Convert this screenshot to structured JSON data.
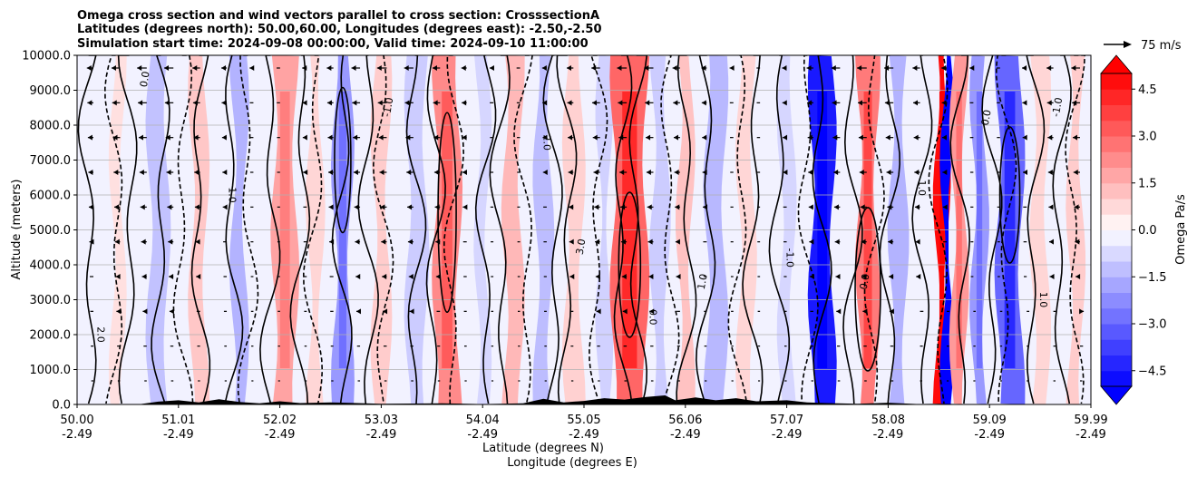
{
  "chart_data": {
    "type": "contour",
    "title_lines": [
      "Omega cross section and wind vectors parallel to cross section: CrosssectionA",
      "Latitudes (degrees north): 50.00,60.00, Longitudes (degrees east): -2.50,-2.50",
      "Simulation start time: 2024-09-08 00:00:00, Valid time: 2024-09-10 11:00:00"
    ],
    "ylabel": "Altitude (meters)",
    "xlabel_lat": "Latitude (degrees N)",
    "xlabel_lon": "Longitude (degrees E)",
    "ylim": [
      0,
      10000
    ],
    "y_ticks": [
      "0.0",
      "1000.0",
      "2000.0",
      "3000.0",
      "4000.0",
      "5000.0",
      "6000.0",
      "7000.0",
      "8000.0",
      "9000.0",
      "10000.0"
    ],
    "x_ticks_lat": [
      "50.00",
      "51.01",
      "52.02",
      "53.03",
      "54.04",
      "55.05",
      "56.06",
      "57.07",
      "58.08",
      "59.09",
      "59.99"
    ],
    "x_ticks_lon": [
      "-2.49",
      "-2.49",
      "-2.49",
      "-2.49",
      "-2.49",
      "-2.49",
      "-2.49",
      "-2.49",
      "-2.49",
      "-2.49",
      "-2.49"
    ],
    "quiver_key_label": "75 m/s",
    "colorbar": {
      "label": "Omega Pa/s",
      "ticks": [
        "4.5",
        "3.0",
        "1.5",
        "0.0",
        "−1.5",
        "−3.0",
        "−4.5"
      ],
      "range": [
        -5,
        5
      ]
    },
    "contour_labels": [
      "0.0",
      "1.0",
      "-1.0",
      "2.0",
      "3.0",
      "0.0",
      "1.0",
      "-1.0",
      "0.0",
      "1.0"
    ],
    "colors": {
      "positive": "#ff0000",
      "negative": "#0000ff",
      "terrain": "#000000"
    }
  }
}
